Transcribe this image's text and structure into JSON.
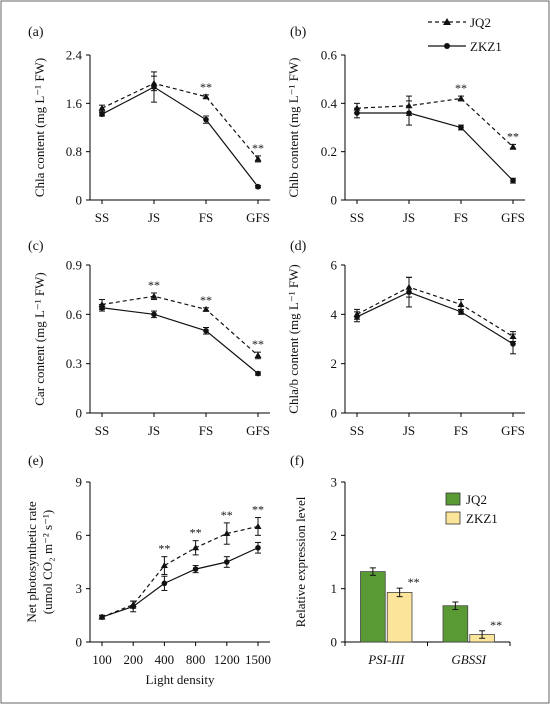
{
  "legend_top": {
    "items": [
      {
        "label": "JQ2",
        "style": "dashed-triangle"
      },
      {
        "label": "ZKZ1",
        "style": "solid-circle"
      }
    ]
  },
  "legend_bottom": {
    "items": [
      {
        "label": "JQ2",
        "color": "#5a9a35"
      },
      {
        "label": "ZKZ1",
        "color": "#fbe59a"
      }
    ]
  },
  "chart_data": [
    {
      "panel": "(a)",
      "type": "line",
      "categories": [
        "SS",
        "JS",
        "FS",
        "GFS"
      ],
      "ylabel": "Chla content (mg L⁻¹ FW)",
      "ylim": [
        0,
        2.4
      ],
      "yticks": [
        "0",
        "0.8",
        "1.6",
        "2.4"
      ],
      "ytick_values": [
        0,
        0.8,
        1.6,
        2.4
      ],
      "series": [
        {
          "name": "JQ2",
          "marker": "triangle",
          "values": [
            1.52,
            1.93,
            1.71,
            0.68
          ],
          "err": [
            0.05,
            0.12,
            0.03,
            0.05
          ]
        },
        {
          "name": "ZKZ1",
          "marker": "circle",
          "values": [
            1.42,
            1.87,
            1.33,
            0.22
          ],
          "err": [
            0.03,
            0.25,
            0.06,
            0.02
          ]
        }
      ],
      "annotations": [
        {
          "index": 2,
          "text": "**"
        },
        {
          "index": 3,
          "text": "**"
        }
      ]
    },
    {
      "panel": "(b)",
      "type": "line",
      "categories": [
        "SS",
        "JS",
        "FS",
        "GFS"
      ],
      "ylabel": "Chlb content (mg L⁻¹ FW)",
      "ylim": [
        0,
        0.6
      ],
      "yticks": [
        "0",
        "0.2",
        "0.4",
        "0.6"
      ],
      "ytick_values": [
        0,
        0.2,
        0.4,
        0.6
      ],
      "series": [
        {
          "name": "JQ2",
          "marker": "triangle",
          "values": [
            0.38,
            0.39,
            0.42,
            0.22
          ],
          "err": [
            0.02,
            0.04,
            0.01,
            0.01
          ]
        },
        {
          "name": "ZKZ1",
          "marker": "circle",
          "values": [
            0.36,
            0.36,
            0.3,
            0.08
          ],
          "err": [
            0.02,
            0.05,
            0.01,
            0.01
          ]
        }
      ],
      "annotations": [
        {
          "index": 2,
          "text": "**"
        },
        {
          "index": 3,
          "text": "**"
        }
      ]
    },
    {
      "panel": "(c)",
      "type": "line",
      "categories": [
        "SS",
        "JS",
        "FS",
        "GFS"
      ],
      "ylabel": "Car content (mg L⁻¹ FW)",
      "ylim": [
        0,
        0.9
      ],
      "yticks": [
        "0",
        "0.3",
        "0.6",
        "0.9"
      ],
      "ytick_values": [
        0,
        0.3,
        0.6,
        0.9
      ],
      "series": [
        {
          "name": "JQ2",
          "marker": "triangle",
          "values": [
            0.66,
            0.71,
            0.63,
            0.35
          ],
          "err": [
            0.03,
            0.02,
            0.01,
            0.02
          ]
        },
        {
          "name": "ZKZ1",
          "marker": "circle",
          "values": [
            0.64,
            0.6,
            0.5,
            0.24
          ],
          "err": [
            0.02,
            0.02,
            0.02,
            0.01
          ]
        }
      ],
      "annotations": [
        {
          "index": 1,
          "text": "**"
        },
        {
          "index": 2,
          "text": "**"
        },
        {
          "index": 3,
          "text": "**"
        }
      ]
    },
    {
      "panel": "(d)",
      "type": "line",
      "categories": [
        "SS",
        "JS",
        "FS",
        "GFS"
      ],
      "ylabel": "Chla/b content (mg L⁻¹ FW)",
      "ylim": [
        0,
        6
      ],
      "yticks": [
        "0",
        "2",
        "4",
        "6"
      ],
      "ytick_values": [
        0,
        2,
        4,
        6
      ],
      "series": [
        {
          "name": "JQ2",
          "marker": "triangle",
          "values": [
            4.0,
            5.1,
            4.4,
            3.1
          ],
          "err": [
            0.2,
            0.4,
            0.2,
            0.2
          ]
        },
        {
          "name": "ZKZ1",
          "marker": "circle",
          "values": [
            3.9,
            4.9,
            4.1,
            2.8
          ],
          "err": [
            0.2,
            0.6,
            0.1,
            0.4
          ]
        }
      ],
      "annotations": []
    },
    {
      "panel": "(e)",
      "type": "line",
      "categories": [
        "100",
        "200",
        "400",
        "800",
        "1200",
        "1500"
      ],
      "xlabel": "Light density",
      "ylabel": "Net photosynthetic rate",
      "ylabel2": "(umol CO₂ m⁻² s⁻¹)",
      "ylim": [
        0,
        9
      ],
      "yticks": [
        "0",
        "3",
        "6",
        "9"
      ],
      "ytick_values": [
        0,
        3,
        6,
        9
      ],
      "series": [
        {
          "name": "JQ2",
          "marker": "triangle",
          "values": [
            1.4,
            2.1,
            4.3,
            5.3,
            6.1,
            6.5
          ],
          "err": [
            0.1,
            0.2,
            0.5,
            0.4,
            0.6,
            0.5
          ]
        },
        {
          "name": "ZKZ1",
          "marker": "circle",
          "values": [
            1.4,
            2.0,
            3.3,
            4.1,
            4.5,
            5.3
          ],
          "err": [
            0.1,
            0.3,
            0.4,
            0.2,
            0.3,
            0.3
          ]
        }
      ],
      "annotations": [
        {
          "index": 2,
          "text": "**"
        },
        {
          "index": 3,
          "text": "**"
        },
        {
          "index": 4,
          "text": "**"
        },
        {
          "index": 5,
          "text": "**"
        }
      ]
    },
    {
      "panel": "(f)",
      "type": "bar",
      "categories": [
        "PSI-III",
        "GBSSI"
      ],
      "ylabel": "Relative expression level",
      "ylim": [
        0,
        3
      ],
      "yticks": [
        "0",
        "1",
        "2",
        "3"
      ],
      "ytick_values": [
        0,
        1,
        2,
        3
      ],
      "series": [
        {
          "name": "JQ2",
          "color": "#5a9a35",
          "values": [
            1.32,
            0.68
          ],
          "err": [
            0.07,
            0.07
          ]
        },
        {
          "name": "ZKZ1",
          "color": "#fbe59a",
          "values": [
            0.93,
            0.14
          ],
          "err": [
            0.08,
            0.07
          ]
        }
      ],
      "annotations": [
        {
          "index": 0,
          "text": "**"
        },
        {
          "index": 1,
          "text": "**"
        }
      ]
    }
  ]
}
